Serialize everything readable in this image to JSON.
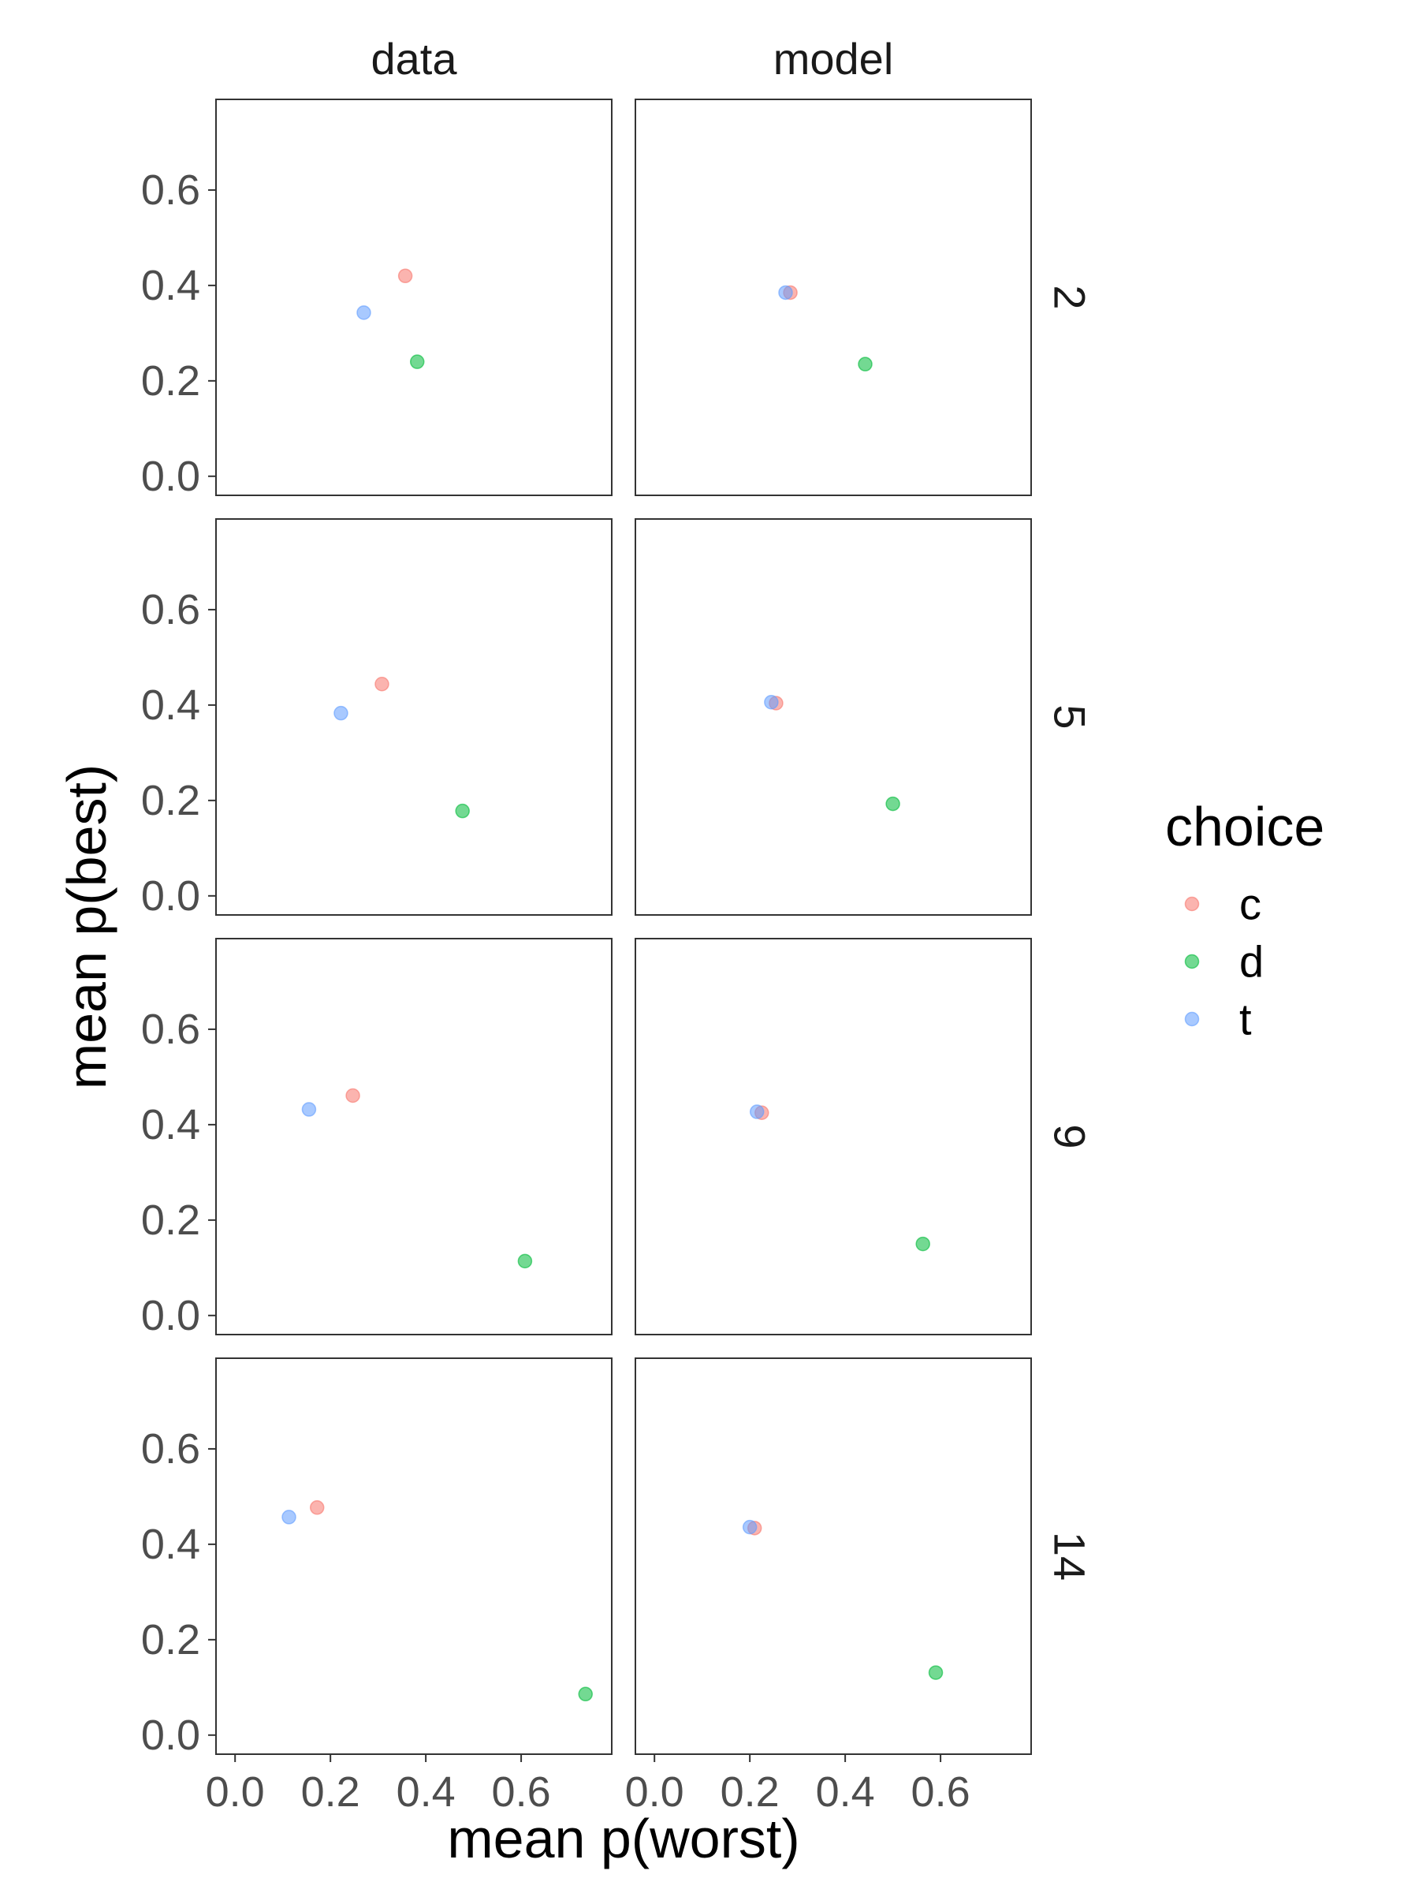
{
  "chart_data": {
    "type": "scatter",
    "xlabel": "mean p(worst)",
    "ylabel": "mean p(best)",
    "xlim": [
      -0.04,
      0.79
    ],
    "ylim": [
      -0.04,
      0.79
    ],
    "x_ticks": [
      "0.0",
      "0.2",
      "0.4",
      "0.6"
    ],
    "y_ticks": [
      "0.0",
      "0.2",
      "0.4",
      "0.6"
    ],
    "grid": false,
    "legend": {
      "title": "choice",
      "position": "right",
      "entries": [
        {
          "name": "c",
          "color": "#F8766D"
        },
        {
          "name": "d",
          "color": "#00BA38"
        },
        {
          "name": "t",
          "color": "#619CFF"
        }
      ]
    },
    "facet_columns": [
      "data",
      "model"
    ],
    "facet_rows": [
      "2",
      "5",
      "9",
      "14"
    ],
    "panels": [
      {
        "column": "data",
        "row": "2",
        "points": [
          {
            "choice": "c",
            "x": 0.357,
            "y": 0.42
          },
          {
            "choice": "d",
            "x": 0.382,
            "y": 0.24
          },
          {
            "choice": "t",
            "x": 0.27,
            "y": 0.343
          }
        ]
      },
      {
        "column": "model",
        "row": "2",
        "points": [
          {
            "choice": "c",
            "x": 0.285,
            "y": 0.385
          },
          {
            "choice": "d",
            "x": 0.442,
            "y": 0.235
          },
          {
            "choice": "t",
            "x": 0.275,
            "y": 0.385
          }
        ]
      },
      {
        "column": "data",
        "row": "5",
        "points": [
          {
            "choice": "c",
            "x": 0.308,
            "y": 0.444
          },
          {
            "choice": "d",
            "x": 0.477,
            "y": 0.178
          },
          {
            "choice": "t",
            "x": 0.222,
            "y": 0.383
          }
        ]
      },
      {
        "column": "model",
        "row": "5",
        "points": [
          {
            "choice": "c",
            "x": 0.255,
            "y": 0.404
          },
          {
            "choice": "d",
            "x": 0.5,
            "y": 0.193
          },
          {
            "choice": "t",
            "x": 0.245,
            "y": 0.406
          }
        ]
      },
      {
        "column": "data",
        "row": "9",
        "points": [
          {
            "choice": "c",
            "x": 0.247,
            "y": 0.461
          },
          {
            "choice": "d",
            "x": 0.608,
            "y": 0.114
          },
          {
            "choice": "t",
            "x": 0.155,
            "y": 0.432
          }
        ]
      },
      {
        "column": "model",
        "row": "9",
        "points": [
          {
            "choice": "c",
            "x": 0.225,
            "y": 0.425
          },
          {
            "choice": "d",
            "x": 0.563,
            "y": 0.15
          },
          {
            "choice": "t",
            "x": 0.215,
            "y": 0.427
          }
        ]
      },
      {
        "column": "data",
        "row": "14",
        "points": [
          {
            "choice": "c",
            "x": 0.172,
            "y": 0.477
          },
          {
            "choice": "d",
            "x": 0.735,
            "y": 0.086
          },
          {
            "choice": "t",
            "x": 0.113,
            "y": 0.457
          }
        ]
      },
      {
        "column": "model",
        "row": "14",
        "points": [
          {
            "choice": "c",
            "x": 0.21,
            "y": 0.434
          },
          {
            "choice": "d",
            "x": 0.59,
            "y": 0.131
          },
          {
            "choice": "t",
            "x": 0.2,
            "y": 0.436
          }
        ]
      }
    ]
  }
}
